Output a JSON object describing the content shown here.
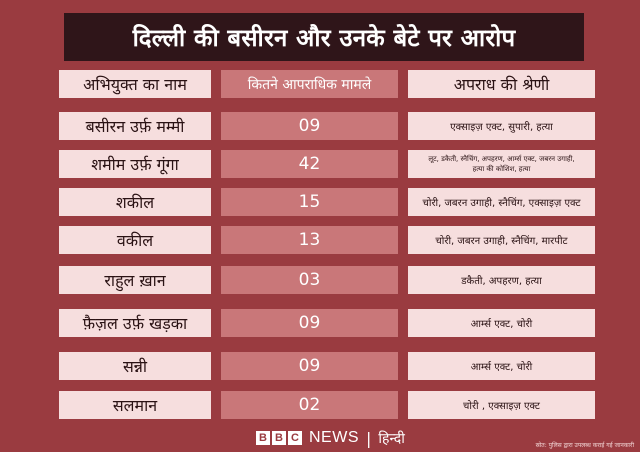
{
  "title": "दिल्ली की बसीरन और उनके बेटे पर आरोप",
  "headers": {
    "name": "अभियुक्त का नाम",
    "cases": "कितने आपराधिक मामले",
    "category": "अपराध की श्रेणी"
  },
  "rows": [
    {
      "name": "बसीरन उर्फ़ मम्मी",
      "cases": "09",
      "category": "एक्साइज़ एक्ट, सुपारी, हत्या"
    },
    {
      "name": "शमीम उर्फ़ गूंगा",
      "cases": "42",
      "category": "लूट, डकैती, स्नैचिंग, अपहरण, आर्म्स एक्ट, जबरन उगाही,",
      "category2": "हत्या की कोशिश, हत्या"
    },
    {
      "name": "शकील",
      "cases": "15",
      "category": "चोरी, जबरन उगाही, स्नैचिंग, एक्साइज़ एक्ट"
    },
    {
      "name": "वकील",
      "cases": "13",
      "category": "चोरी, जबरन उगाही, स्नैचिंग, मारपीट"
    },
    {
      "name": "राहुल ख़ान",
      "cases": "03",
      "category": "डकैती, अपहरण, हत्या"
    },
    {
      "name": "फ़ैज़ल उर्फ़ खड़का",
      "cases": "09",
      "category": "आर्म्स एक्ट, चोरी"
    },
    {
      "name": "सन्नी",
      "cases": "09",
      "category": "आर्म्स एक्ट, चोरी"
    },
    {
      "name": "सलमान",
      "cases": "02",
      "category": "चोरी , एक्साइज़ एक्ट"
    }
  ],
  "footer": {
    "bbc_letters": [
      "B",
      "B",
      "C"
    ],
    "news": "NEWS",
    "separator": "|",
    "language": "हिन्दी"
  },
  "source": "स्रोत: पुलिस द्वारा उपलब्ध कराई गई जानकारी"
}
